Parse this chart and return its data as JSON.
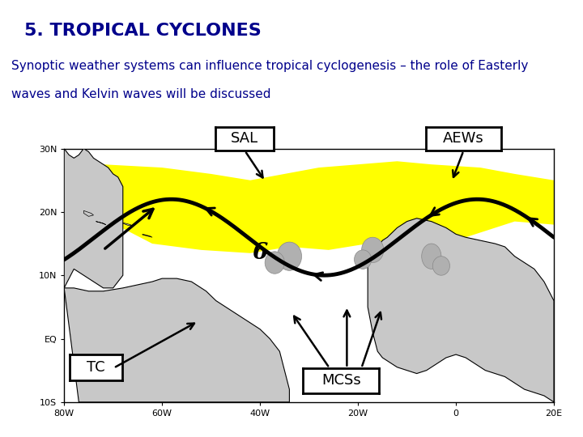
{
  "title": "5. TROPICAL CYCLONES",
  "title_bg": "#add8e6",
  "title_color": "#00008B",
  "title_fontsize": 16,
  "subtitle_line1": "Synoptic weather systems can influence tropical cyclogenesis – the role of Easterly",
  "subtitle_line2": "waves and Kelvin waves will be discussed",
  "subtitle_fontsize": 11,
  "subtitle_color": "#00008B",
  "bg_color": "#ffffff",
  "label_SAL": "SAL",
  "label_AEWs": "AEWs",
  "label_TC": "TC",
  "label_MCSs": "MCSs",
  "map_xlim": [
    -80,
    20
  ],
  "map_ylim": [
    -10,
    30
  ],
  "map_xticks": [
    -80,
    -60,
    -40,
    -20,
    0,
    20
  ],
  "map_xticklabels": [
    "80W",
    "60W",
    "40W",
    "20W",
    "0",
    "20E"
  ],
  "map_yticks": [
    -10,
    0,
    10,
    20,
    30
  ],
  "map_yticklabels": [
    "10S",
    "EQ",
    "10N",
    "20N",
    "30N"
  ]
}
